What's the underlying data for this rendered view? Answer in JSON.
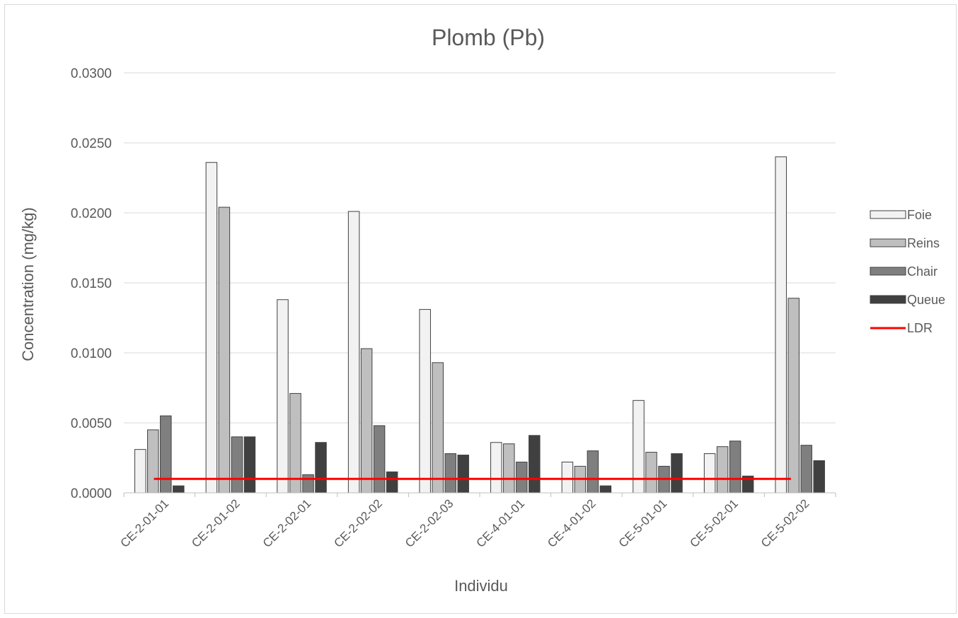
{
  "chart_data": {
    "type": "bar",
    "title": "Plomb (Pb)",
    "xlabel": "Individu",
    "ylabel": "Concentration (mg/kg)",
    "ylim": [
      0,
      0.03
    ],
    "yticks": [
      "0.0000",
      "0.0050",
      "0.0100",
      "0.0150",
      "0.0200",
      "0.0250",
      "0.0300"
    ],
    "grid": true,
    "legend_position": "right",
    "categories": [
      "CE-2-01-01",
      "CE-2-01-02",
      "CE-2-02-01",
      "CE-2-02-02",
      "CE-2-02-03",
      "CE-4-01-01",
      "CE-4-01-02",
      "CE-5-01-01",
      "CE-5-02-01",
      "CE-5-02-02"
    ],
    "series": [
      {
        "name": "Foie",
        "color": "#f2f2f2",
        "values": [
          0.0031,
          0.0236,
          0.0138,
          0.0201,
          0.0131,
          0.0036,
          0.0022,
          0.0066,
          0.0028,
          0.024
        ]
      },
      {
        "name": "Reins",
        "color": "#bfbfbf",
        "values": [
          0.0045,
          0.0204,
          0.0071,
          0.0103,
          0.0093,
          0.0035,
          0.0019,
          0.0029,
          0.0033,
          0.0139
        ]
      },
      {
        "name": "Chair",
        "color": "#7f7f7f",
        "values": [
          0.0055,
          0.004,
          0.0013,
          0.0048,
          0.0028,
          0.0022,
          0.003,
          0.0019,
          0.0037,
          0.0034
        ]
      },
      {
        "name": "Queue",
        "color": "#404040",
        "values": [
          0.0005,
          0.004,
          0.0036,
          0.0015,
          0.0027,
          0.0041,
          0.0005,
          0.0028,
          0.0012,
          0.0023
        ]
      }
    ],
    "reference_line": {
      "name": "LDR",
      "color": "#ff0000",
      "value": 0.001
    }
  }
}
